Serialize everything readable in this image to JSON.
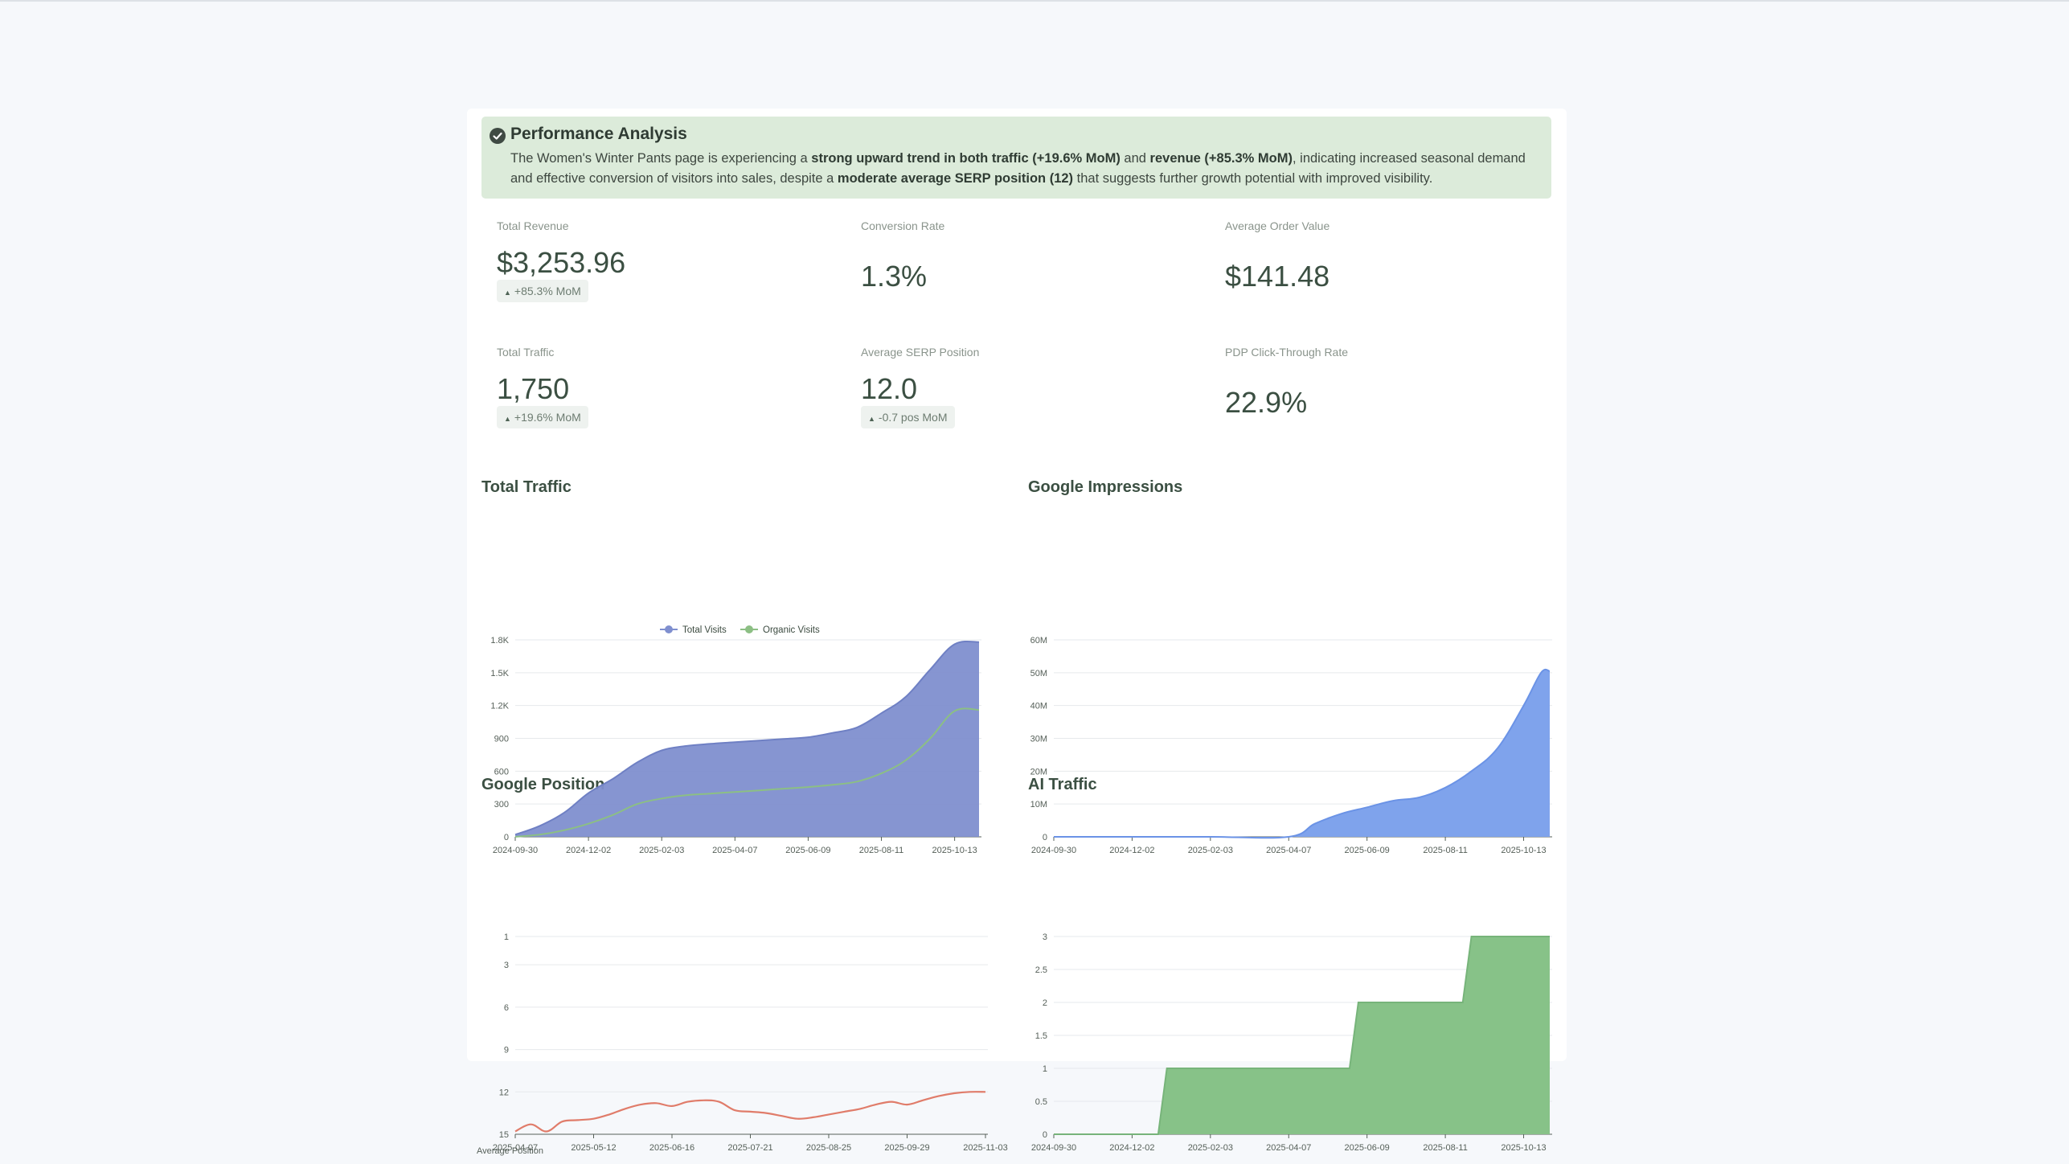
{
  "banner": {
    "title": "Performance Analysis",
    "body_html": "The Women's Winter Pants page is experiencing a <b>strong upward trend in both traffic (+19.6% MoM)</b> and <b>revenue (+85.3% MoM)</b>, indicating increased seasonal demand and effective conversion of visitors into sales, despite a <b>moderate average SERP position (12)</b> that suggests further growth potential with improved visibility.",
    "icon": "check-circle-icon"
  },
  "metrics": {
    "total_revenue": {
      "label": "Total Revenue",
      "value": "$3,253.96",
      "badge": "+85.3% MoM"
    },
    "conversion_rate": {
      "label": "Conversion Rate",
      "value": "1.3%"
    },
    "average_order_value": {
      "label": "Average Order Value",
      "value": "$141.48"
    },
    "total_traffic": {
      "label": "Total Traffic",
      "value": "1,750",
      "badge": "+19.6% MoM"
    },
    "average_serp_position": {
      "label": "Average SERP Position",
      "value": "12.0",
      "badge": "-0.7 pos MoM"
    },
    "pdp_ctr": {
      "label": "PDP Click-Through Rate",
      "value": "22.9%"
    }
  },
  "colors": {
    "banner_bg": "#dcebda",
    "total_visits": "#7f8fcf",
    "organic_visits": "#8cbf84",
    "impressions": "#7fa3ec",
    "position": "#e07c6a",
    "ai_traffic": "#87c288"
  },
  "chart_data": [
    {
      "type": "area",
      "title": "Total Traffic",
      "x_ticks": [
        "2024-09-30",
        "2024-12-02",
        "2025-02-03",
        "2025-04-07",
        "2025-06-09",
        "2025-08-11",
        "2025-10-13"
      ],
      "y_ticks": [
        "0",
        "300",
        "600",
        "900",
        "1.2K",
        "1.5K",
        "1.8K"
      ],
      "ylim": [
        0,
        1800
      ],
      "legend": [
        "Total Visits",
        "Organic Visits"
      ],
      "legend_position": "top-center",
      "x": [
        "2024-09-30",
        "2024-10-21",
        "2024-11-11",
        "2024-12-02",
        "2024-12-23",
        "2025-01-13",
        "2025-02-03",
        "2025-02-24",
        "2025-03-17",
        "2025-04-07",
        "2025-04-28",
        "2025-05-19",
        "2025-06-09",
        "2025-06-30",
        "2025-07-21",
        "2025-08-11",
        "2025-09-01",
        "2025-09-22",
        "2025-10-13",
        "2025-11-03"
      ],
      "series": [
        {
          "name": "Total Visits",
          "values": [
            20,
            100,
            220,
            400,
            530,
            680,
            790,
            830,
            850,
            865,
            880,
            895,
            910,
            950,
            1000,
            1130,
            1280,
            1530,
            1760,
            1780
          ]
        },
        {
          "name": "Organic Visits",
          "values": [
            0,
            20,
            60,
            120,
            200,
            300,
            350,
            380,
            395,
            410,
            425,
            440,
            455,
            475,
            505,
            580,
            700,
            900,
            1150,
            1160
          ]
        }
      ]
    },
    {
      "type": "area",
      "title": "Google Impressions",
      "x_ticks": [
        "2024-09-30",
        "2024-12-02",
        "2025-02-03",
        "2025-04-07",
        "2025-06-09",
        "2025-08-11",
        "2025-10-13"
      ],
      "y_ticks": [
        "0",
        "10M",
        "20M",
        "30M",
        "40M",
        "50M",
        "60M"
      ],
      "ylim": [
        0,
        60
      ],
      "x": [
        "2024-09-30",
        "2024-12-02",
        "2025-02-03",
        "2025-04-07",
        "2025-04-28",
        "2025-05-19",
        "2025-06-09",
        "2025-06-30",
        "2025-07-21",
        "2025-08-11",
        "2025-09-01",
        "2025-09-22",
        "2025-10-13",
        "2025-10-27",
        "2025-11-03"
      ],
      "series": [
        {
          "name": "Impressions",
          "values": [
            0,
            0,
            0,
            0,
            4,
            7,
            9,
            11,
            12,
            15,
            20,
            27,
            40,
            50,
            50.5
          ]
        }
      ]
    },
    {
      "type": "line",
      "title": "Google Position",
      "x_ticks": [
        "2025-04-07",
        "2025-05-12",
        "2025-06-16",
        "2025-07-21",
        "2025-08-25",
        "2025-09-29",
        "2025-11-03"
      ],
      "y_ticks": [
        "1",
        "3",
        "6",
        "9",
        "12",
        "15"
      ],
      "ylim": [
        15,
        1
      ],
      "reversed_y": true,
      "ylabel": "Average Position",
      "x": [
        "2025-04-07",
        "2025-04-14",
        "2025-04-21",
        "2025-04-28",
        "2025-05-05",
        "2025-05-12",
        "2025-05-19",
        "2025-05-26",
        "2025-06-02",
        "2025-06-09",
        "2025-06-16",
        "2025-06-23",
        "2025-06-30",
        "2025-07-07",
        "2025-07-14",
        "2025-07-21",
        "2025-07-28",
        "2025-08-04",
        "2025-08-11",
        "2025-08-18",
        "2025-08-25",
        "2025-09-01",
        "2025-09-08",
        "2025-09-15",
        "2025-09-22",
        "2025-09-29",
        "2025-10-06",
        "2025-10-13",
        "2025-10-20",
        "2025-10-27",
        "2025-11-03"
      ],
      "series": [
        {
          "name": "Average Position",
          "values": [
            14.8,
            14.3,
            14.8,
            14.1,
            14.0,
            13.9,
            13.6,
            13.2,
            12.9,
            12.8,
            13.0,
            12.7,
            12.6,
            12.7,
            13.3,
            13.4,
            13.5,
            13.7,
            13.9,
            13.8,
            13.6,
            13.4,
            13.2,
            12.9,
            12.7,
            12.9,
            12.6,
            12.3,
            12.1,
            12.0,
            12.0
          ]
        }
      ]
    },
    {
      "type": "area",
      "title": "AI Traffic",
      "x_ticks": [
        "2024-09-30",
        "2024-12-02",
        "2025-02-03",
        "2025-04-07",
        "2025-06-09",
        "2025-08-11",
        "2025-10-13"
      ],
      "y_ticks": [
        "0",
        "0.5",
        "1",
        "1.5",
        "2",
        "2.5",
        "3"
      ],
      "ylim": [
        0,
        3
      ],
      "x": [
        "2024-09-30",
        "2024-12-23",
        "2024-12-30",
        "2025-05-26",
        "2025-06-02",
        "2025-08-25",
        "2025-09-01",
        "2025-11-03"
      ],
      "series": [
        {
          "name": "AI Traffic",
          "values": [
            0,
            0,
            1,
            1,
            2,
            2,
            3,
            3
          ]
        }
      ]
    }
  ]
}
